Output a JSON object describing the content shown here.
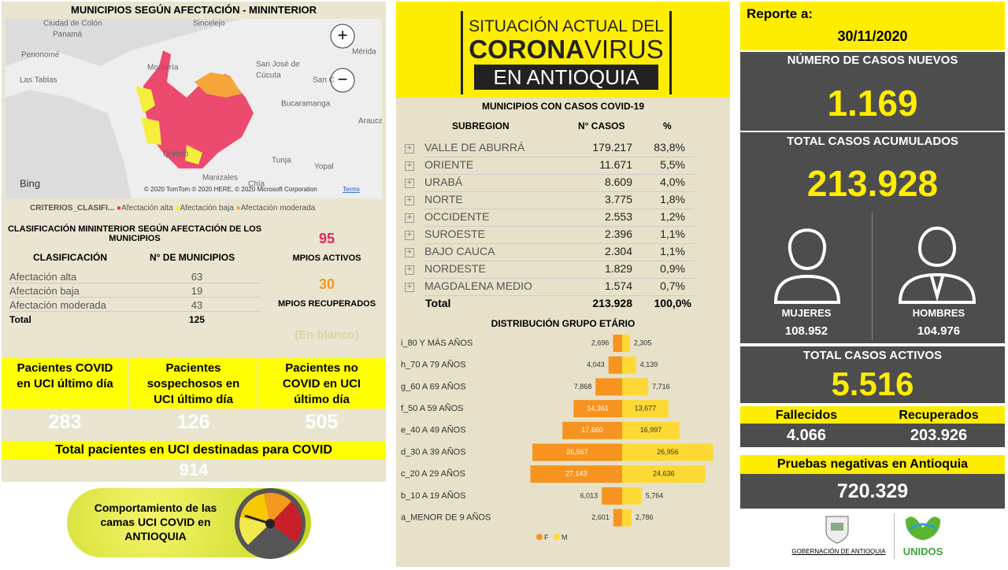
{
  "map_panel": {
    "title": "MUNICIPIOS SEGÚN AFECTACIÓN - MININTERIOR",
    "places": [
      "Ciudad de Colón",
      "Panamá",
      "Penonomé",
      "Las Tablas",
      "Montería",
      "Sincelejo",
      "Mérida",
      "San José de",
      "Cúcuta",
      "San C",
      "Bucaramanga",
      "Arauca",
      "Quibdó",
      "Tunja",
      "Yopal",
      "Manizales",
      "Chía"
    ],
    "bing": "Bing",
    "attribution": "© 2020 TomTom © 2020 HERE, © 2020 Microsoft Corporation",
    "terms": "Terms",
    "legend": {
      "label": "CRITERIOS_CLASIFI...",
      "items": [
        "Afectación alta",
        "Afectación baja",
        "Afectación moderada"
      ]
    }
  },
  "classification": {
    "title": "CLASIFICACIÓN MININTERIOR SEGÚN AFECTACIÓN DE LOS MUNICIPIOS",
    "header": [
      "CLASIFICACIÓN",
      "N° DE MUNICIPIOS"
    ],
    "rows": [
      [
        "Afectación alta",
        "63"
      ],
      [
        "Afectación baja",
        "19"
      ],
      [
        "Afectación moderada",
        "43"
      ]
    ],
    "total": [
      "Total",
      "125"
    ]
  },
  "municipalities": {
    "active": "95",
    "active_label": "MPIOS ACTIVOS",
    "recovered": "30",
    "recovered_label": "MPIOS RECUPERADOS",
    "blank": "(En blanco)"
  },
  "uci": {
    "items": [
      {
        "label": "Pacientes COVID en UCI último día",
        "value": "283"
      },
      {
        "label": "Pacientes sospechosos en UCI último día",
        "value": "126"
      },
      {
        "label": "Pacientes no COVID en UCI último día",
        "value": "505"
      }
    ],
    "total_label": "Total pacientes en UCI destinadas para COVID",
    "total": "914"
  },
  "gauge_button": "Comportamiento de las camas UCI COVID en ANTIOQUIA",
  "banner": {
    "line1": "SITUACIÓN ACTUAL DEL",
    "line2a": "CORONA",
    "line2b": "VIRUS",
    "line3": "EN ANTIOQUIA"
  },
  "cases_table": {
    "title": "MUNICIPIOS CON CASOS COVID-19",
    "header": [
      "SUBREGION",
      "N° CASOS",
      "%"
    ],
    "rows": [
      [
        "VALLE DE ABURRÁ",
        "179.217",
        "83,8%"
      ],
      [
        "ORIENTE",
        "11.671",
        "5,5%"
      ],
      [
        "URABÁ",
        "8.609",
        "4,0%"
      ],
      [
        "NORTE",
        "3.775",
        "1,8%"
      ],
      [
        "OCCIDENTE",
        "2.553",
        "1,2%"
      ],
      [
        "SUROESTE",
        "2.396",
        "1,1%"
      ],
      [
        "BAJO CAUCA",
        "2.304",
        "1,1%"
      ],
      [
        "NORDESTE",
        "1.829",
        "0,9%"
      ],
      [
        "MAGDALENA MEDIO",
        "1.574",
        "0,7%"
      ]
    ],
    "total": [
      "Total",
      "213.928",
      "100,0%"
    ]
  },
  "chart_data": {
    "type": "bar",
    "title": "DISTRIBUCIÓN GRUPO ETÁRIO",
    "categories": [
      "i_80 Y MÁS AÑOS",
      "h_70 A 79 AÑOS",
      "g_60 A 69 AÑOS",
      "f_50 A 59 AÑOS",
      "e_40 A 49 AÑOS",
      "d_30 A 39 AÑOS",
      "c_20 A 29 AÑOS",
      "b_10 A 19 AÑOS",
      "a_MENOR DE 9 AÑOS"
    ],
    "series": [
      {
        "name": "F",
        "color": "#f7931e",
        "values": [
          2696,
          4043,
          7868,
          14361,
          17660,
          26567,
          27143,
          6013,
          2601
        ],
        "value_labels": [
          "2,696",
          "4,043",
          "7,868",
          "14,361",
          "17,660",
          "26,567",
          "27,143",
          "6,013",
          "2,601"
        ]
      },
      {
        "name": "M",
        "color": "#ffd933",
        "values": [
          2305,
          4139,
          7716,
          13677,
          16997,
          26956,
          24636,
          5764,
          2786
        ],
        "value_labels": [
          "2,305",
          "4,139",
          "7,716",
          "13,677",
          "16,997",
          "26,956",
          "24,636",
          "5,764",
          "2,786"
        ]
      }
    ]
  },
  "report": {
    "label": "Reporte a:",
    "date": "30/11/2020",
    "new_label": "NÚMERO DE CASOS NUEVOS",
    "new": "1.169",
    "total_label": "TOTAL CASOS ACUMULADOS",
    "total": "213.928",
    "women_label": "MUJERES",
    "women": "108.952",
    "men_label": "HOMBRES",
    "men": "104.976",
    "active_label": "TOTAL CASOS ACTIVOS",
    "active": "5.516",
    "deaths_label": "Fallecidos",
    "deaths": "4.066",
    "recovered_label": "Recuperados",
    "recovered": "203.926",
    "negative_label": "Pruebas negativas en Antioquia",
    "negative": "720.329",
    "footer_gov": "GOBERNACIÓN DE ANTIOQUIA",
    "footer_unidos": "UNIDOS"
  }
}
